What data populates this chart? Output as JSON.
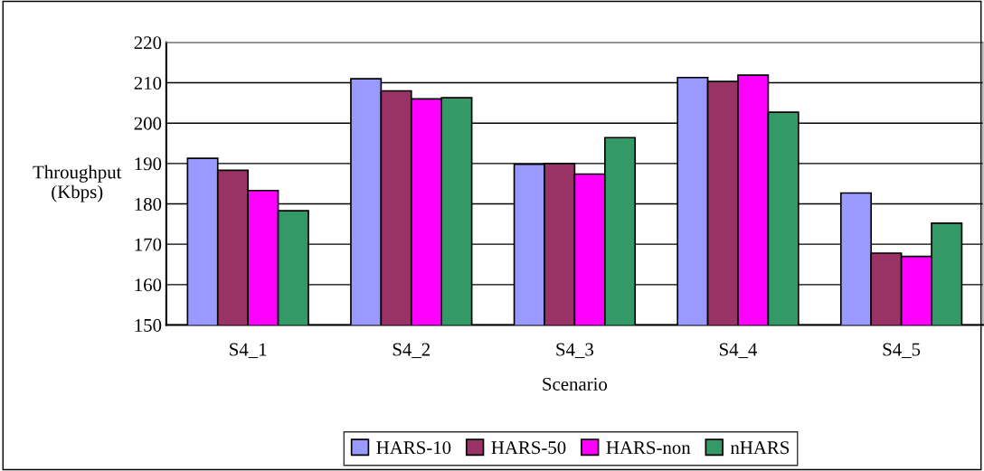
{
  "chart_data": {
    "type": "bar",
    "xlabel": "Scenario",
    "ylabel": "Throughput\n(Kbps)",
    "categories": [
      "S4_1",
      "S4_2",
      "S4_3",
      "S4_4",
      "S4_5"
    ],
    "series": [
      {
        "name": "HARS-10",
        "color": "#9999ff",
        "values": [
          191.3,
          211.0,
          189.8,
          211.3,
          182.7
        ]
      },
      {
        "name": "HARS-50",
        "color": "#993366",
        "values": [
          188.3,
          208.0,
          190.0,
          210.3,
          167.8
        ]
      },
      {
        "name": "HARS-non",
        "color": "#ff00ff",
        "values": [
          183.3,
          206.0,
          187.4,
          211.9,
          167.0
        ]
      },
      {
        "name": "nHARS",
        "color": "#339966",
        "values": [
          178.3,
          206.3,
          196.4,
          202.7,
          175.2
        ]
      }
    ],
    "ylim": [
      150,
      220
    ],
    "yticks": [
      150,
      160,
      170,
      180,
      190,
      200,
      210,
      220
    ],
    "grid": "y",
    "legend": "bottom"
  }
}
